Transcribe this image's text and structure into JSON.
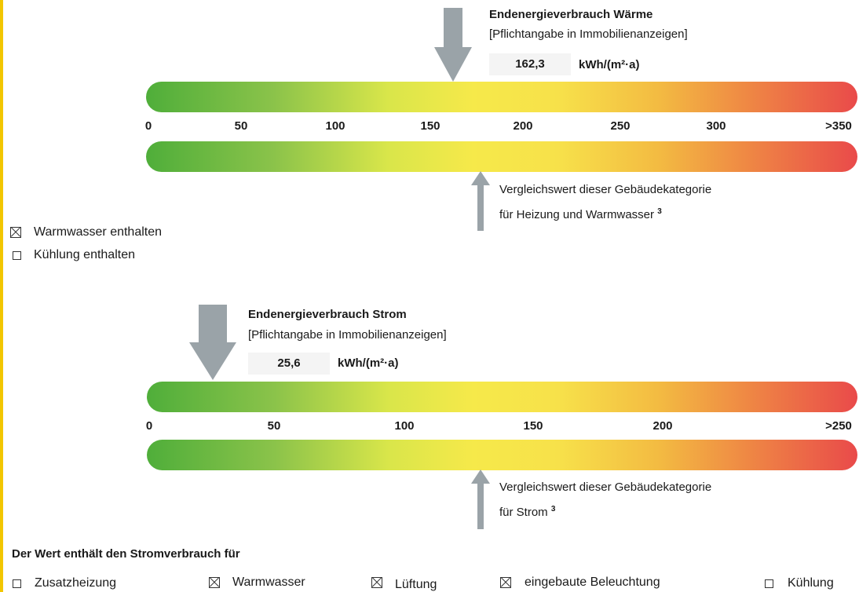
{
  "heat": {
    "title": "Endenergieverbrauch Wärme",
    "subtitle": "[Pflichtangabe in Immobilienanzeigen]",
    "value": "162,3",
    "unit": "kWh/(m²·a)",
    "ticks": [
      "0",
      "50",
      "100",
      "150",
      "200",
      "250",
      "300",
      ">350"
    ],
    "comparison_line1": "Vergleichswert dieser Gebäudekategorie",
    "comparison_line2": "für Heizung und Warmwasser",
    "footnote": "3"
  },
  "options": {
    "warmwasser_label": "Warmwasser enthalten",
    "warmwasser_checked": true,
    "kuehlung_label": "Kühlung enthalten",
    "kuehlung_checked": false
  },
  "power": {
    "title": "Endenergieverbrauch Strom",
    "subtitle": "[Pflichtangabe in Immobilienanzeigen]",
    "value": "25,6",
    "unit": "kWh/(m²·a)",
    "ticks": [
      "0",
      "50",
      "100",
      "150",
      "200",
      ">250"
    ],
    "comparison_line1": "Vergleichswert dieser Gebäudekategorie",
    "comparison_line2": "für Strom",
    "footnote": "3"
  },
  "power_usage": {
    "heading": "Der Wert enthält den Stromverbrauch für",
    "items": [
      {
        "label": "Zusatzheizung",
        "checked": false
      },
      {
        "label": "Warmwasser",
        "checked": true
      },
      {
        "label": "Lüftung",
        "checked": true
      },
      {
        "label": "eingebaute Beleuchtung",
        "checked": true
      },
      {
        "label": "Kühlung",
        "checked": false
      }
    ]
  },
  "colors": {
    "arrow": "#9aa3a8",
    "scale_green": "#4fae3a",
    "scale_yellow": "#f6e94a",
    "scale_red": "#e94a4a",
    "edge": "#f2c600"
  }
}
